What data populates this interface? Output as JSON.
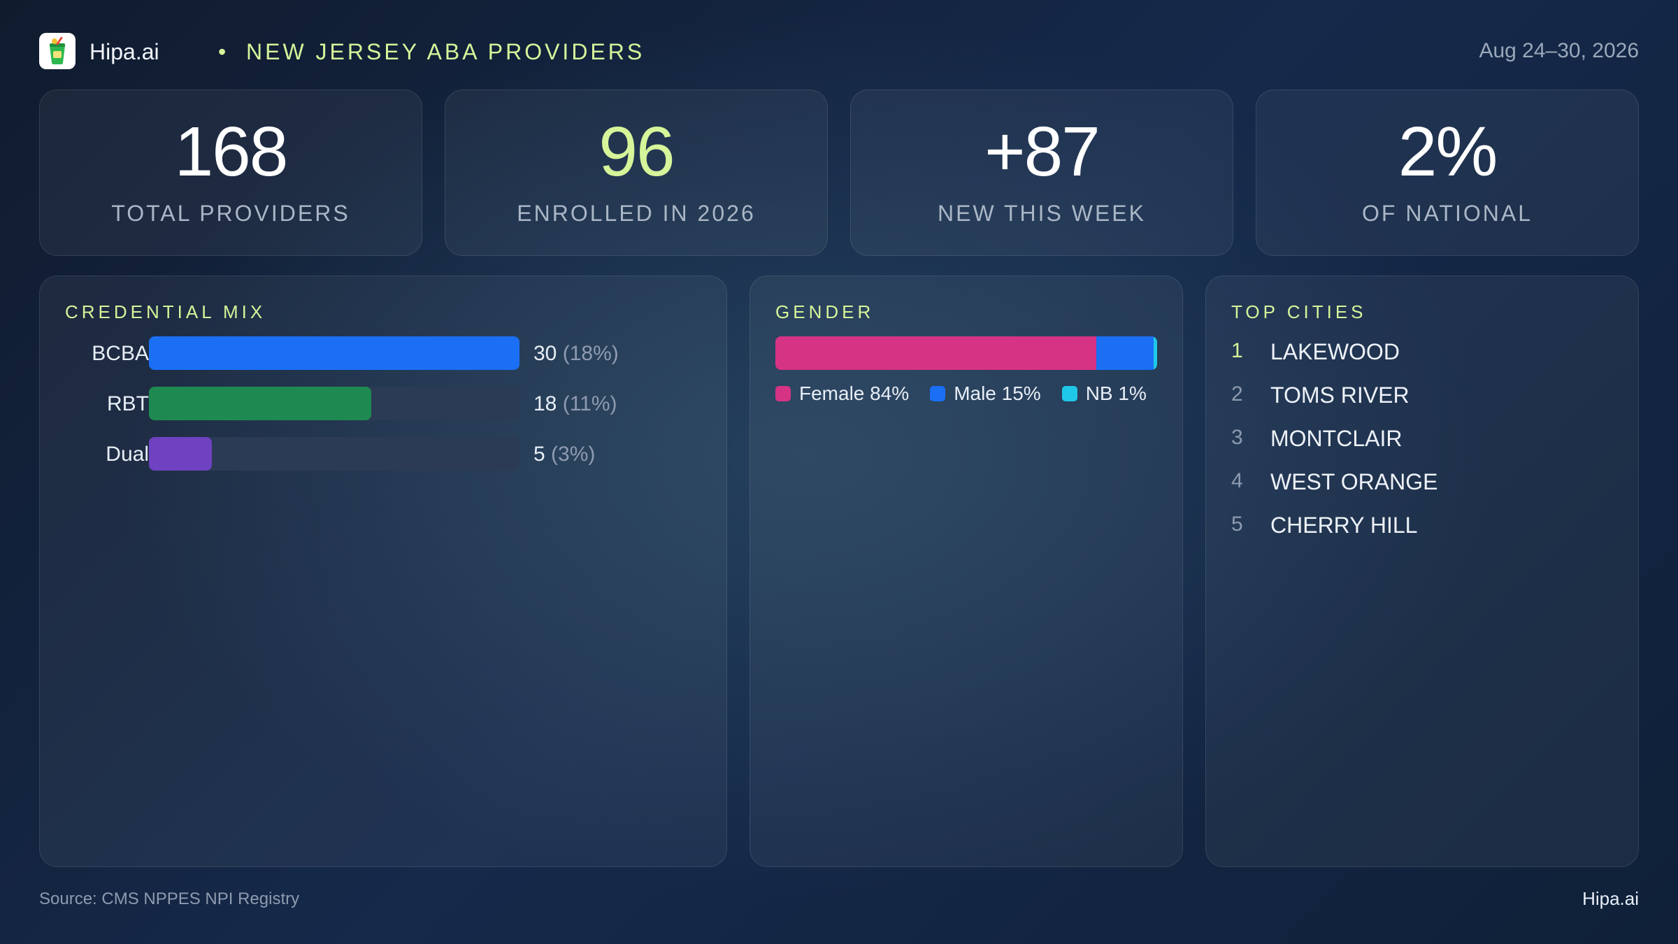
{
  "header": {
    "brand": "Hipa.ai",
    "separator": "•",
    "title": "NEW JERSEY ABA PROVIDERS",
    "date_range": "Aug 24–30, 2026",
    "logo_icon": "drink-cup-icon"
  },
  "kpis": [
    {
      "value": "168",
      "label": "TOTAL PROVIDERS",
      "color": "#ffffff"
    },
    {
      "value": "96",
      "label": "ENROLLED IN 2026",
      "color": "#d6f59a"
    },
    {
      "value": "+87",
      "label": "NEW THIS WEEK",
      "color": "#ffffff"
    },
    {
      "value": "2%",
      "label": "OF NATIONAL",
      "color": "#ffffff"
    }
  ],
  "credential_mix": {
    "title": "CREDENTIAL MIX",
    "rows": [
      {
        "label": "BCBA",
        "count": "30",
        "pct": "(18%)",
        "fraction": 1.0,
        "color": "#1a6ff5"
      },
      {
        "label": "RBT",
        "count": "18",
        "pct": "(11%)",
        "fraction": 0.6,
        "color": "#1e8a52"
      },
      {
        "label": "Dual",
        "count": "5",
        "pct": "(3%)",
        "fraction": 0.17,
        "color": "#6f42c1"
      }
    ]
  },
  "gender": {
    "title": "GENDER",
    "segments": [
      {
        "label": "Female 84%",
        "percent": 84,
        "color": "#d63384"
      },
      {
        "label": "Male 15%",
        "percent": 15,
        "color": "#1a6ff5"
      },
      {
        "label": "NB 1%",
        "percent": 1,
        "color": "#1fc8e8"
      }
    ]
  },
  "top_cities": {
    "title": "TOP CITIES",
    "items": [
      {
        "rank": "1",
        "name": "LAKEWOOD"
      },
      {
        "rank": "2",
        "name": "TOMS RIVER"
      },
      {
        "rank": "3",
        "name": "MONTCLAIR"
      },
      {
        "rank": "4",
        "name": "WEST ORANGE"
      },
      {
        "rank": "5",
        "name": "CHERRY HILL"
      }
    ]
  },
  "footer": {
    "source": "Source: CMS NPPES NPI Registry",
    "brand": "Hipa.ai"
  }
}
